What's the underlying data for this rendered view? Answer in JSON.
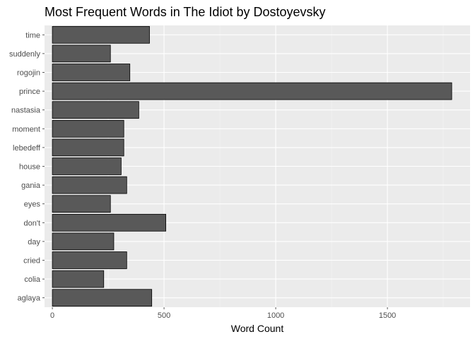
{
  "chart_data": {
    "type": "bar",
    "orientation": "horizontal",
    "title": "Most Frequent Words in The Idiot by Dostoyevsky",
    "xlabel": "Word Count",
    "ylabel": "",
    "xlim": [
      -35,
      1870
    ],
    "xticks": [
      0,
      500,
      1000,
      1500
    ],
    "xtick_labels": [
      "0",
      "500",
      "1000",
      "1500"
    ],
    "grid": true,
    "legend": "none",
    "categories": [
      "time",
      "suddenly",
      "rogojin",
      "prince",
      "nastasia",
      "moment",
      "lebedeff",
      "house",
      "gania",
      "eyes",
      "don't",
      "day",
      "cried",
      "colia",
      "aglaya"
    ],
    "values": [
      435,
      260,
      347,
      1788,
      387,
      320,
      320,
      308,
      333,
      260,
      508,
      275,
      333,
      230,
      445
    ],
    "colors": {
      "panel_background": "#ebebeb",
      "grid_major": "#ffffff",
      "grid_minor": "#f5f5f5",
      "bar_fill": "#595959",
      "bar_outline": "#000000",
      "tick_text": "#4d4d4d",
      "title_text": "#000000"
    }
  }
}
